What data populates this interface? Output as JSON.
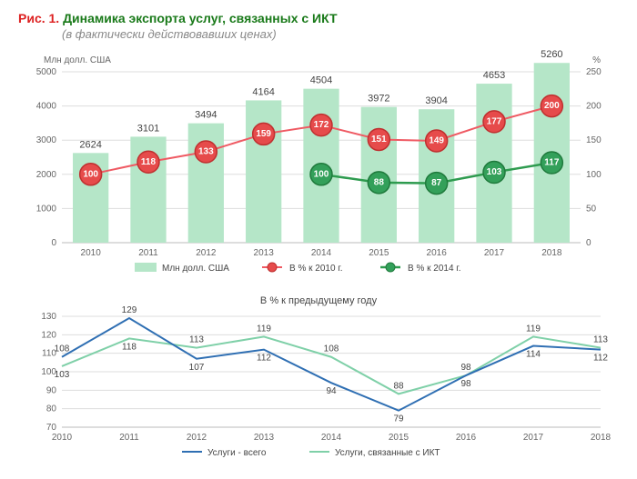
{
  "header": {
    "fig_label": "Рис. 1.",
    "title": "Динамика экспорта услуг, связанных с ИКТ",
    "subtitle": "(в фактически действовавших ценах)"
  },
  "chart1": {
    "type": "bar+line",
    "y_left_title": "Млн долл. США",
    "y_right_title": "%",
    "categories": [
      "2010",
      "2011",
      "2012",
      "2013",
      "2014",
      "2015",
      "2016",
      "2017",
      "2018"
    ],
    "bars": {
      "values": [
        2624,
        3101,
        3494,
        4164,
        4504,
        3972,
        3904,
        4653,
        5260
      ],
      "color": "#b5e6c8",
      "width": 0.62
    },
    "line_red": {
      "values": [
        100,
        118,
        133,
        159,
        172,
        151,
        149,
        177,
        200
      ],
      "stroke": "#ef5a63",
      "marker_fill": "#e64b4b",
      "marker_stroke": "#bf2f2f",
      "marker_r": 12
    },
    "line_green": {
      "values": [
        null,
        null,
        null,
        null,
        100,
        88,
        87,
        103,
        117
      ],
      "stroke": "#2e9b4f",
      "marker_fill": "#33a05a",
      "marker_stroke": "#1f7a3c",
      "marker_r": 12
    },
    "y_left": {
      "min": 0,
      "max": 5000,
      "step": 1000
    },
    "y_right": {
      "min": 0,
      "max": 250,
      "step": 50
    },
    "grid_color": "#dddddd",
    "axis_color": "#bbbbbb",
    "legend": {
      "bar": "Млн долл. США",
      "red": "В % к 2010 г.",
      "green": "В % к 2014 г."
    }
  },
  "chart2": {
    "type": "line",
    "title": "В % к предыдущему году",
    "categories": [
      "2010",
      "2011",
      "2012",
      "2013",
      "2014",
      "2015",
      "2016",
      "2017",
      "2018"
    ],
    "series_blue": {
      "name": "Услуги - всего",
      "values": [
        108,
        129,
        107,
        112,
        94,
        79,
        98,
        114,
        112
      ],
      "stroke": "#2f6fb3"
    },
    "series_green": {
      "name": "Услуги, связанные с ИКТ",
      "values": [
        103,
        118,
        113,
        119,
        108,
        88,
        98,
        119,
        113
      ],
      "stroke": "#7fd0a8"
    },
    "y": {
      "min": 70,
      "max": 130,
      "step": 10
    },
    "grid_color": "#dddddd",
    "axis_color": "#bbbbbb",
    "label_color": "#444"
  }
}
